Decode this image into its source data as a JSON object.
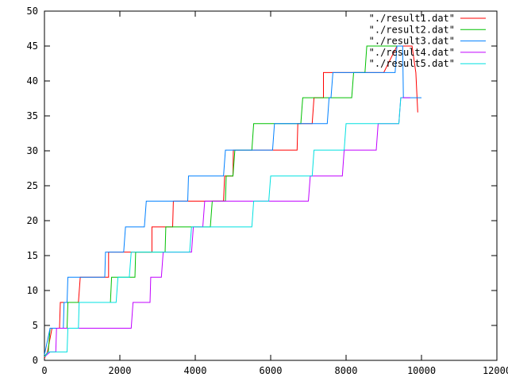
{
  "chart_data": {
    "type": "line",
    "title": "",
    "xlabel": "",
    "ylabel": "",
    "xlim": [
      0,
      12000
    ],
    "ylim": [
      0,
      50
    ],
    "x_ticks": [
      0,
      2000,
      4000,
      6000,
      8000,
      10000,
      12000
    ],
    "y_ticks": [
      0,
      5,
      10,
      15,
      20,
      25,
      30,
      35,
      40,
      45,
      50
    ],
    "grid": false,
    "legend_position": "top-right",
    "series": [
      {
        "name": "\"./result1.dat\"",
        "color": "#ff0000",
        "points": [
          [
            0,
            0.3
          ],
          [
            80,
            1.2
          ],
          [
            200,
            4.6
          ],
          [
            400,
            4.6
          ],
          [
            420,
            8.3
          ],
          [
            900,
            8.3
          ],
          [
            950,
            11.9
          ],
          [
            1700,
            11.9
          ],
          [
            1700,
            15.5
          ],
          [
            2850,
            15.5
          ],
          [
            2850,
            19.1
          ],
          [
            3400,
            19.1
          ],
          [
            3420,
            22.8
          ],
          [
            4750,
            22.8
          ],
          [
            4780,
            26.4
          ],
          [
            5000,
            26.4
          ],
          [
            5010,
            30.1
          ],
          [
            6700,
            30.1
          ],
          [
            6720,
            33.9
          ],
          [
            7100,
            33.9
          ],
          [
            7150,
            37.6
          ],
          [
            7400,
            37.6
          ],
          [
            7400,
            41.2
          ],
          [
            9000,
            41.2
          ],
          [
            9350,
            45.0
          ],
          [
            9750,
            45.0
          ],
          [
            9850,
            41.2
          ],
          [
            9900,
            35.5
          ]
        ]
      },
      {
        "name": "\"./result2.dat\"",
        "color": "#00c000",
        "points": [
          [
            0,
            0.6
          ],
          [
            100,
            1.2
          ],
          [
            150,
            4.6
          ],
          [
            600,
            4.6
          ],
          [
            620,
            8.3
          ],
          [
            1750,
            8.3
          ],
          [
            1780,
            11.9
          ],
          [
            2400,
            11.9
          ],
          [
            2420,
            15.5
          ],
          [
            3200,
            15.5
          ],
          [
            3220,
            19.1
          ],
          [
            4400,
            19.1
          ],
          [
            4450,
            22.8
          ],
          [
            4800,
            22.8
          ],
          [
            4820,
            26.4
          ],
          [
            5000,
            26.4
          ],
          [
            5050,
            30.1
          ],
          [
            5500,
            30.1
          ],
          [
            5550,
            33.9
          ],
          [
            6800,
            33.9
          ],
          [
            6850,
            37.6
          ],
          [
            8150,
            37.6
          ],
          [
            8200,
            41.2
          ],
          [
            8500,
            41.2
          ],
          [
            8550,
            45.0
          ],
          [
            9500,
            45.0
          ]
        ]
      },
      {
        "name": "\"./result3.dat\"",
        "color": "#0080ff",
        "points": [
          [
            0,
            0.8
          ],
          [
            150,
            4.6
          ],
          [
            500,
            4.6
          ],
          [
            520,
            8.3
          ],
          [
            600,
            8.3
          ],
          [
            620,
            11.9
          ],
          [
            1600,
            11.9
          ],
          [
            1620,
            15.5
          ],
          [
            2100,
            15.5
          ],
          [
            2150,
            19.1
          ],
          [
            2650,
            19.1
          ],
          [
            2700,
            22.8
          ],
          [
            3800,
            22.8
          ],
          [
            3820,
            26.4
          ],
          [
            4750,
            26.4
          ],
          [
            4800,
            30.1
          ],
          [
            6050,
            30.1
          ],
          [
            6100,
            33.9
          ],
          [
            7500,
            33.9
          ],
          [
            7550,
            37.6
          ],
          [
            7600,
            37.6
          ],
          [
            7650,
            41.2
          ],
          [
            9300,
            41.2
          ],
          [
            9350,
            45.0
          ],
          [
            9500,
            45.0
          ],
          [
            9520,
            37.6
          ],
          [
            10000,
            37.6
          ]
        ]
      },
      {
        "name": "\"./result4.dat\"",
        "color": "#c000ff",
        "points": [
          [
            0,
            0.5
          ],
          [
            150,
            1.2
          ],
          [
            300,
            1.2
          ],
          [
            320,
            4.6
          ],
          [
            2300,
            4.6
          ],
          [
            2350,
            8.3
          ],
          [
            2800,
            8.3
          ],
          [
            2820,
            11.9
          ],
          [
            3100,
            11.9
          ],
          [
            3150,
            15.5
          ],
          [
            3900,
            15.5
          ],
          [
            3950,
            19.1
          ],
          [
            4200,
            19.1
          ],
          [
            4250,
            22.8
          ],
          [
            7000,
            22.8
          ],
          [
            7050,
            26.4
          ],
          [
            7900,
            26.4
          ],
          [
            7950,
            30.1
          ],
          [
            8800,
            30.1
          ],
          [
            8850,
            33.9
          ],
          [
            9400,
            33.9
          ],
          [
            9450,
            37.6
          ],
          [
            9700,
            37.6
          ]
        ]
      },
      {
        "name": "\"./result5.dat\"",
        "color": "#00e0e0",
        "points": [
          [
            0,
            0.5
          ],
          [
            100,
            1.2
          ],
          [
            600,
            1.2
          ],
          [
            620,
            4.6
          ],
          [
            900,
            4.6
          ],
          [
            920,
            8.3
          ],
          [
            1900,
            8.3
          ],
          [
            1950,
            11.9
          ],
          [
            2250,
            11.9
          ],
          [
            2300,
            15.5
          ],
          [
            3850,
            15.5
          ],
          [
            3900,
            19.1
          ],
          [
            5500,
            19.1
          ],
          [
            5550,
            22.8
          ],
          [
            5950,
            22.8
          ],
          [
            6000,
            26.4
          ],
          [
            7100,
            26.4
          ],
          [
            7150,
            30.1
          ],
          [
            7950,
            30.1
          ],
          [
            8000,
            33.9
          ],
          [
            9400,
            33.9
          ],
          [
            9450,
            37.6
          ],
          [
            9500,
            37.6
          ]
        ]
      }
    ]
  }
}
